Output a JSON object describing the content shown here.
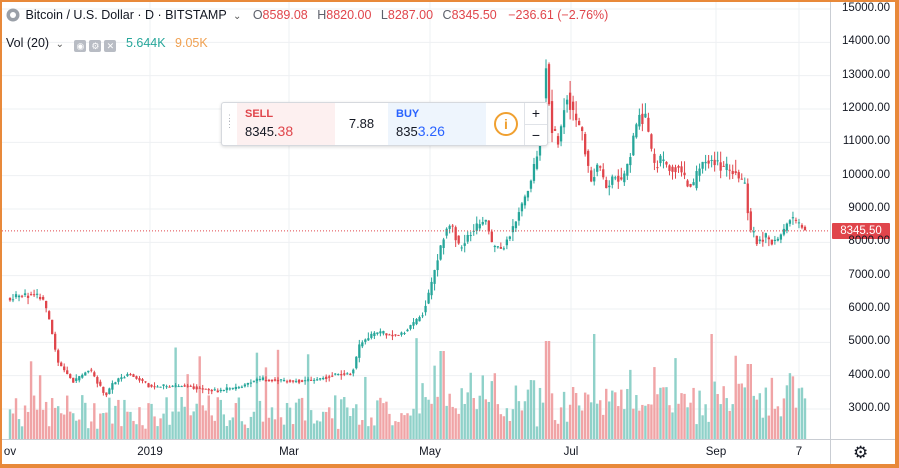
{
  "header": {
    "symbol": "Bitcoin / U.S. Dollar · D · BITSTAMP",
    "ohlc": [
      {
        "label": "O",
        "value": "8589.08"
      },
      {
        "label": "H",
        "value": "8820.00"
      },
      {
        "label": "L",
        "value": "8287.00"
      },
      {
        "label": "C",
        "value": "8345.50"
      }
    ],
    "change": "−236.61 (−2.76%)"
  },
  "volume_legend": {
    "title": "Vol (20)",
    "volume": "5.644K",
    "volume_ma": "9.05K"
  },
  "trade_panel": {
    "sell_label": "SELL",
    "sell_price_main": "8345.",
    "sell_price_big": "38",
    "spread": "7.88",
    "buy_label": "BUY",
    "buy_price_main": "835",
    "buy_price_big": "3.26",
    "info_glyph": "i",
    "plus": "+",
    "minus": "−"
  },
  "price_axis": {
    "last_price_label": "8345.50"
  },
  "colors": {
    "up": "#26a69a",
    "down": "#e0454b",
    "volume_up": "#8fd1c9",
    "volume_down": "#f0a4a6",
    "frame": "#e8893a"
  },
  "icons": {
    "settings": "gear-icon"
  },
  "chart_data": {
    "type": "candlestick",
    "title": "Bitcoin / U.S. Dollar · D · BITSTAMP",
    "y_ticks": [
      "15000.00",
      "14000.00",
      "13000.00",
      "12000.00",
      "11000.00",
      "10000.00",
      "9000.00",
      "8000.00",
      "7000.00",
      "6000.00",
      "5000.00",
      "4000.00",
      "3000.00"
    ],
    "x_ticks": [
      "ov",
      "2019",
      "Mar",
      "May",
      "Jul",
      "Sep",
      "7"
    ],
    "ylim": [
      2200,
      15000
    ],
    "last_price": 8345.5,
    "price_path": [
      [
        0,
        6300
      ],
      [
        0.02,
        6450
      ],
      [
        0.04,
        6350
      ],
      [
        0.05,
        5600
      ],
      [
        0.06,
        4400
      ],
      [
        0.08,
        3800
      ],
      [
        0.1,
        4200
      ],
      [
        0.12,
        3400
      ],
      [
        0.13,
        3800
      ],
      [
        0.15,
        4050
      ],
      [
        0.18,
        3650
      ],
      [
        0.22,
        3700
      ],
      [
        0.26,
        3550
      ],
      [
        0.29,
        3650
      ],
      [
        0.31,
        3900
      ],
      [
        0.34,
        3850
      ],
      [
        0.38,
        3850
      ],
      [
        0.41,
        4050
      ],
      [
        0.43,
        4050
      ],
      [
        0.44,
        4950
      ],
      [
        0.46,
        5300
      ],
      [
        0.49,
        5200
      ],
      [
        0.51,
        5600
      ],
      [
        0.52,
        5900
      ],
      [
        0.535,
        7200
      ],
      [
        0.545,
        8200
      ],
      [
        0.555,
        8600
      ],
      [
        0.565,
        7800
      ],
      [
        0.58,
        8300
      ],
      [
        0.6,
        8700
      ],
      [
        0.605,
        7900
      ],
      [
        0.62,
        7800
      ],
      [
        0.63,
        8300
      ],
      [
        0.645,
        9200
      ],
      [
        0.655,
        9800
      ],
      [
        0.665,
        10800
      ],
      [
        0.675,
        13500
      ],
      [
        0.68,
        11500
      ],
      [
        0.69,
        11000
      ],
      [
        0.7,
        12500
      ],
      [
        0.71,
        11800
      ],
      [
        0.72,
        11200
      ],
      [
        0.73,
        9800
      ],
      [
        0.74,
        10400
      ],
      [
        0.75,
        9600
      ],
      [
        0.76,
        10000
      ],
      [
        0.77,
        9800
      ],
      [
        0.78,
        10600
      ],
      [
        0.79,
        11800
      ],
      [
        0.8,
        11700
      ],
      [
        0.81,
        10200
      ],
      [
        0.82,
        10500
      ],
      [
        0.83,
        10200
      ],
      [
        0.84,
        10300
      ],
      [
        0.85,
        9800
      ],
      [
        0.86,
        9700
      ],
      [
        0.87,
        10400
      ],
      [
        0.88,
        10500
      ],
      [
        0.9,
        10200
      ],
      [
        0.91,
        10200
      ],
      [
        0.92,
        9800
      ],
      [
        0.925,
        9800
      ],
      [
        0.93,
        8400
      ],
      [
        0.94,
        8000
      ],
      [
        0.95,
        8200
      ],
      [
        0.96,
        8000
      ],
      [
        0.97,
        8200
      ],
      [
        0.98,
        8700
      ],
      [
        0.99,
        8600
      ],
      [
        1.0,
        8345
      ]
    ],
    "volume_scale": [
      0,
      12000
    ],
    "volume_ma": 9050,
    "volume_last": 5644
  }
}
